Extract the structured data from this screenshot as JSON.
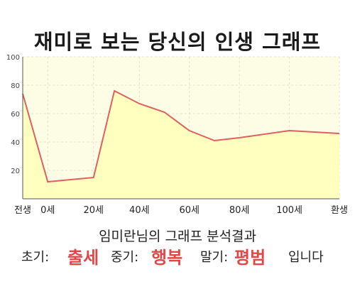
{
  "chart_data": {
    "type": "area",
    "title": "재미로 보는 당신의 인생 그래프",
    "x": [
      "전생",
      "0세",
      "20세",
      "40세",
      "60세",
      "80세",
      "100세",
      "환생"
    ],
    "ylim": [
      0,
      100
    ],
    "yticks": [
      20,
      40,
      60,
      80,
      100
    ],
    "grid": true,
    "series": [
      {
        "color": "#e06060",
        "fill": "#ffffc0",
        "points": [
          [
            -6,
            74
          ],
          [
            0,
            12
          ],
          [
            11,
            15
          ],
          [
            16,
            76
          ],
          [
            22,
            67
          ],
          [
            28,
            61
          ],
          [
            34,
            48
          ],
          [
            40,
            41
          ],
          [
            46,
            43
          ],
          [
            58,
            48
          ],
          [
            64,
            47
          ],
          [
            70,
            46
          ]
        ]
      }
    ]
  },
  "result": {
    "heading": "임미란님의 그래프 분석결과",
    "early_label": "초기:",
    "early_value": "출세",
    "middle_label": "중기:",
    "middle_value": "행복",
    "late_label": "말기:",
    "late_value": "평범",
    "closing": "입니다"
  },
  "colors": {
    "plot_background": "#fdfde6",
    "line": "#e06060",
    "highlight_text": "#e04848"
  }
}
